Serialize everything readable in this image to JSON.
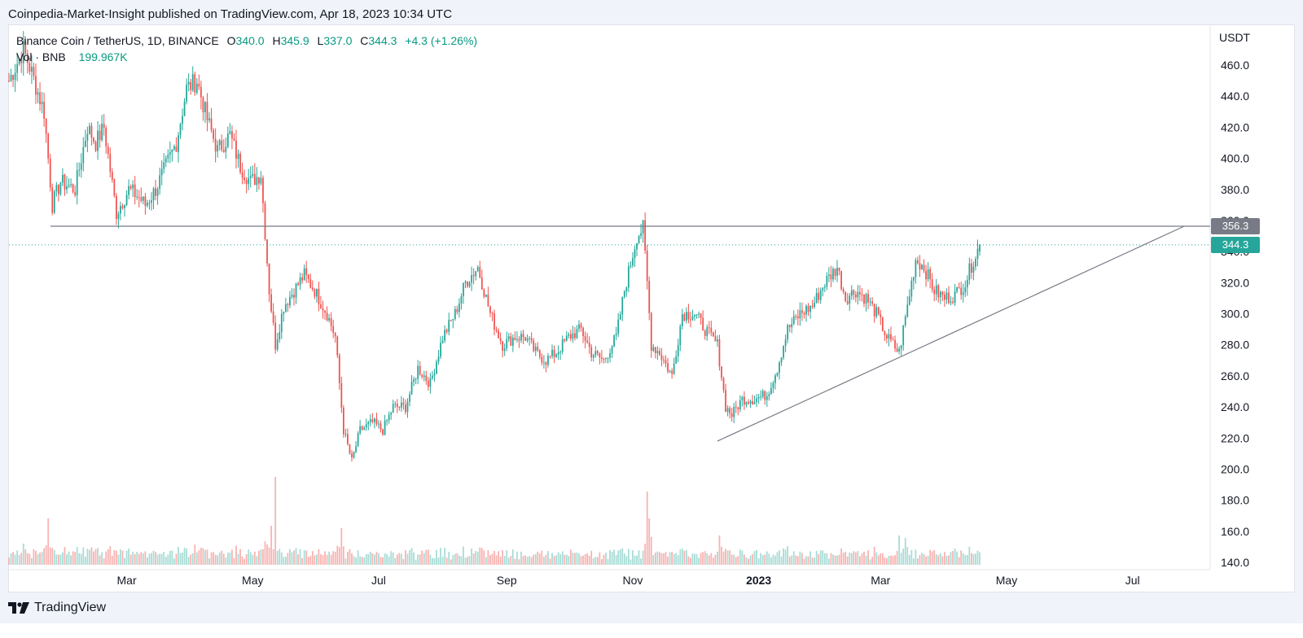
{
  "header": {
    "published_text": "Coinpedia-Market-Insight published on TradingView.com, Apr 18, 2023 10:34 UTC"
  },
  "legend": {
    "symbol_text": "Binance Coin / TetherUS, 1D, BINANCE",
    "open_label": "O",
    "open_value": "340.0",
    "high_label": "H",
    "high_value": "345.9",
    "low_label": "L",
    "low_value": "337.0",
    "close_label": "C",
    "close_value": "344.3",
    "change_value": "+4.3 (+1.26%)",
    "vol_label": "Vol · BNB",
    "vol_value": "199.967K"
  },
  "footer": {
    "brand": "TradingView"
  },
  "colors": {
    "up": "#26a69a",
    "down": "#ef5350",
    "up_vol": "#a8dcd6",
    "down_vol": "#f7b3b1",
    "resistance_line": "#787b86",
    "trendline": "#787b86",
    "resistance_label_bg": "#787b86",
    "last_price_bg": "#26a69a",
    "last_price_line": "#26a69a"
  },
  "chart_data": {
    "type": "candlestick",
    "y_unit": "USDT",
    "ylim": [
      140,
      470
    ],
    "y_ticks": [
      "140.0",
      "160.0",
      "180.0",
      "200.0",
      "220.0",
      "240.0",
      "260.0",
      "280.0",
      "300.0",
      "320.0",
      "340.0",
      "360.0",
      "380.0",
      "400.0",
      "420.0",
      "440.0",
      "460.0"
    ],
    "x_ticks": [
      {
        "label": "Mar",
        "date": "2022-03-01",
        "bold": false
      },
      {
        "label": "May",
        "date": "2022-05-01",
        "bold": false
      },
      {
        "label": "Jul",
        "date": "2022-07-01",
        "bold": false
      },
      {
        "label": "Sep",
        "date": "2022-09-01",
        "bold": false
      },
      {
        "label": "Nov",
        "date": "2022-11-01",
        "bold": false
      },
      {
        "label": "2023",
        "date": "2023-01-01",
        "bold": true
      },
      {
        "label": "Mar",
        "date": "2023-03-01",
        "bold": false
      },
      {
        "label": "May",
        "date": "2023-05-01",
        "bold": false
      },
      {
        "label": "Jul",
        "date": "2023-07-01",
        "bold": false
      }
    ],
    "x_range": [
      "2022-01-03",
      "2023-08-06"
    ],
    "series_path": [
      [
        "2022-01-03",
        450
      ],
      [
        "2022-01-10",
        470
      ],
      [
        "2022-01-14",
        455
      ],
      [
        "2022-01-20",
        430
      ],
      [
        "2022-01-24",
        370
      ],
      [
        "2022-01-28",
        385
      ],
      [
        "2022-02-04",
        380
      ],
      [
        "2022-02-10",
        420
      ],
      [
        "2022-02-14",
        410
      ],
      [
        "2022-02-18",
        420
      ],
      [
        "2022-02-24",
        365
      ],
      [
        "2022-03-02",
        380
      ],
      [
        "2022-03-07",
        375
      ],
      [
        "2022-03-10",
        370
      ],
      [
        "2022-03-15",
        380
      ],
      [
        "2022-03-20",
        395
      ],
      [
        "2022-03-25",
        410
      ],
      [
        "2022-03-30",
        445
      ],
      [
        "2022-04-04",
        450
      ],
      [
        "2022-04-09",
        425
      ],
      [
        "2022-04-14",
        405
      ],
      [
        "2022-04-20",
        415
      ],
      [
        "2022-04-25",
        395
      ],
      [
        "2022-04-30",
        385
      ],
      [
        "2022-05-05",
        390
      ],
      [
        "2022-05-09",
        315
      ],
      [
        "2022-05-12",
        280
      ],
      [
        "2022-05-16",
        305
      ],
      [
        "2022-05-21",
        315
      ],
      [
        "2022-05-26",
        325
      ],
      [
        "2022-05-31",
        315
      ],
      [
        "2022-06-06",
        300
      ],
      [
        "2022-06-10",
        285
      ],
      [
        "2022-06-14",
        225
      ],
      [
        "2022-06-18",
        205
      ],
      [
        "2022-06-22",
        225
      ],
      [
        "2022-06-28",
        230
      ],
      [
        "2022-07-03",
        225
      ],
      [
        "2022-07-08",
        240
      ],
      [
        "2022-07-14",
        240
      ],
      [
        "2022-07-20",
        265
      ],
      [
        "2022-07-26",
        255
      ],
      [
        "2022-08-01",
        285
      ],
      [
        "2022-08-07",
        300
      ],
      [
        "2022-08-12",
        320
      ],
      [
        "2022-08-18",
        330
      ],
      [
        "2022-08-24",
        300
      ],
      [
        "2022-08-30",
        280
      ],
      [
        "2022-09-05",
        285
      ],
      [
        "2022-09-10",
        285
      ],
      [
        "2022-09-15",
        275
      ],
      [
        "2022-09-20",
        270
      ],
      [
        "2022-09-25",
        275
      ],
      [
        "2022-10-01",
        285
      ],
      [
        "2022-10-07",
        290
      ],
      [
        "2022-10-12",
        275
      ],
      [
        "2022-10-18",
        270
      ],
      [
        "2022-10-24",
        285
      ],
      [
        "2022-10-28",
        315
      ],
      [
        "2022-11-03",
        350
      ],
      [
        "2022-11-06",
        355
      ],
      [
        "2022-11-08",
        320
      ],
      [
        "2022-11-10",
        280
      ],
      [
        "2022-11-14",
        275
      ],
      [
        "2022-11-20",
        260
      ],
      [
        "2022-11-25",
        300
      ],
      [
        "2022-12-01",
        300
      ],
      [
        "2022-12-06",
        290
      ],
      [
        "2022-12-12",
        280
      ],
      [
        "2022-12-16",
        240
      ],
      [
        "2022-12-19",
        235
      ],
      [
        "2022-12-24",
        245
      ],
      [
        "2022-12-30",
        245
      ],
      [
        "2023-01-05",
        248
      ],
      [
        "2023-01-10",
        265
      ],
      [
        "2023-01-15",
        290
      ],
      [
        "2023-01-21",
        300
      ],
      [
        "2023-01-27",
        305
      ],
      [
        "2023-02-02",
        320
      ],
      [
        "2023-02-08",
        330
      ],
      [
        "2023-02-12",
        310
      ],
      [
        "2023-02-17",
        315
      ],
      [
        "2023-02-22",
        310
      ],
      [
        "2023-02-27",
        300
      ],
      [
        "2023-03-04",
        285
      ],
      [
        "2023-03-10",
        275
      ],
      [
        "2023-03-14",
        305
      ],
      [
        "2023-03-18",
        335
      ],
      [
        "2023-03-22",
        330
      ],
      [
        "2023-03-27",
        315
      ],
      [
        "2023-04-01",
        310
      ],
      [
        "2023-04-06",
        312
      ],
      [
        "2023-04-11",
        320
      ],
      [
        "2023-04-15",
        335
      ],
      [
        "2023-04-18",
        344.3
      ]
    ],
    "volume_spikes": [
      {
        "date": "2022-01-22",
        "value": 190000
      },
      {
        "date": "2022-05-10",
        "value": 160000
      },
      {
        "date": "2022-05-12",
        "value": 360000
      },
      {
        "date": "2022-06-13",
        "value": 150000
      },
      {
        "date": "2022-11-08",
        "value": 300000
      },
      {
        "date": "2022-11-09",
        "value": 190000
      },
      {
        "date": "2022-12-13",
        "value": 120000
      },
      {
        "date": "2023-03-10",
        "value": 120000
      },
      {
        "date": "2023-03-13",
        "value": 110000
      }
    ],
    "resistance_level": 356.3,
    "last_price": 344.3,
    "trendline": {
      "start": [
        "2022-12-12",
        218
      ],
      "end": [
        "2023-07-26",
        356.3
      ]
    },
    "annotations": [
      {
        "text": "356.3",
        "kind": "horizontal-line-label"
      },
      {
        "text": "344.3",
        "kind": "last-price-label"
      }
    ]
  }
}
